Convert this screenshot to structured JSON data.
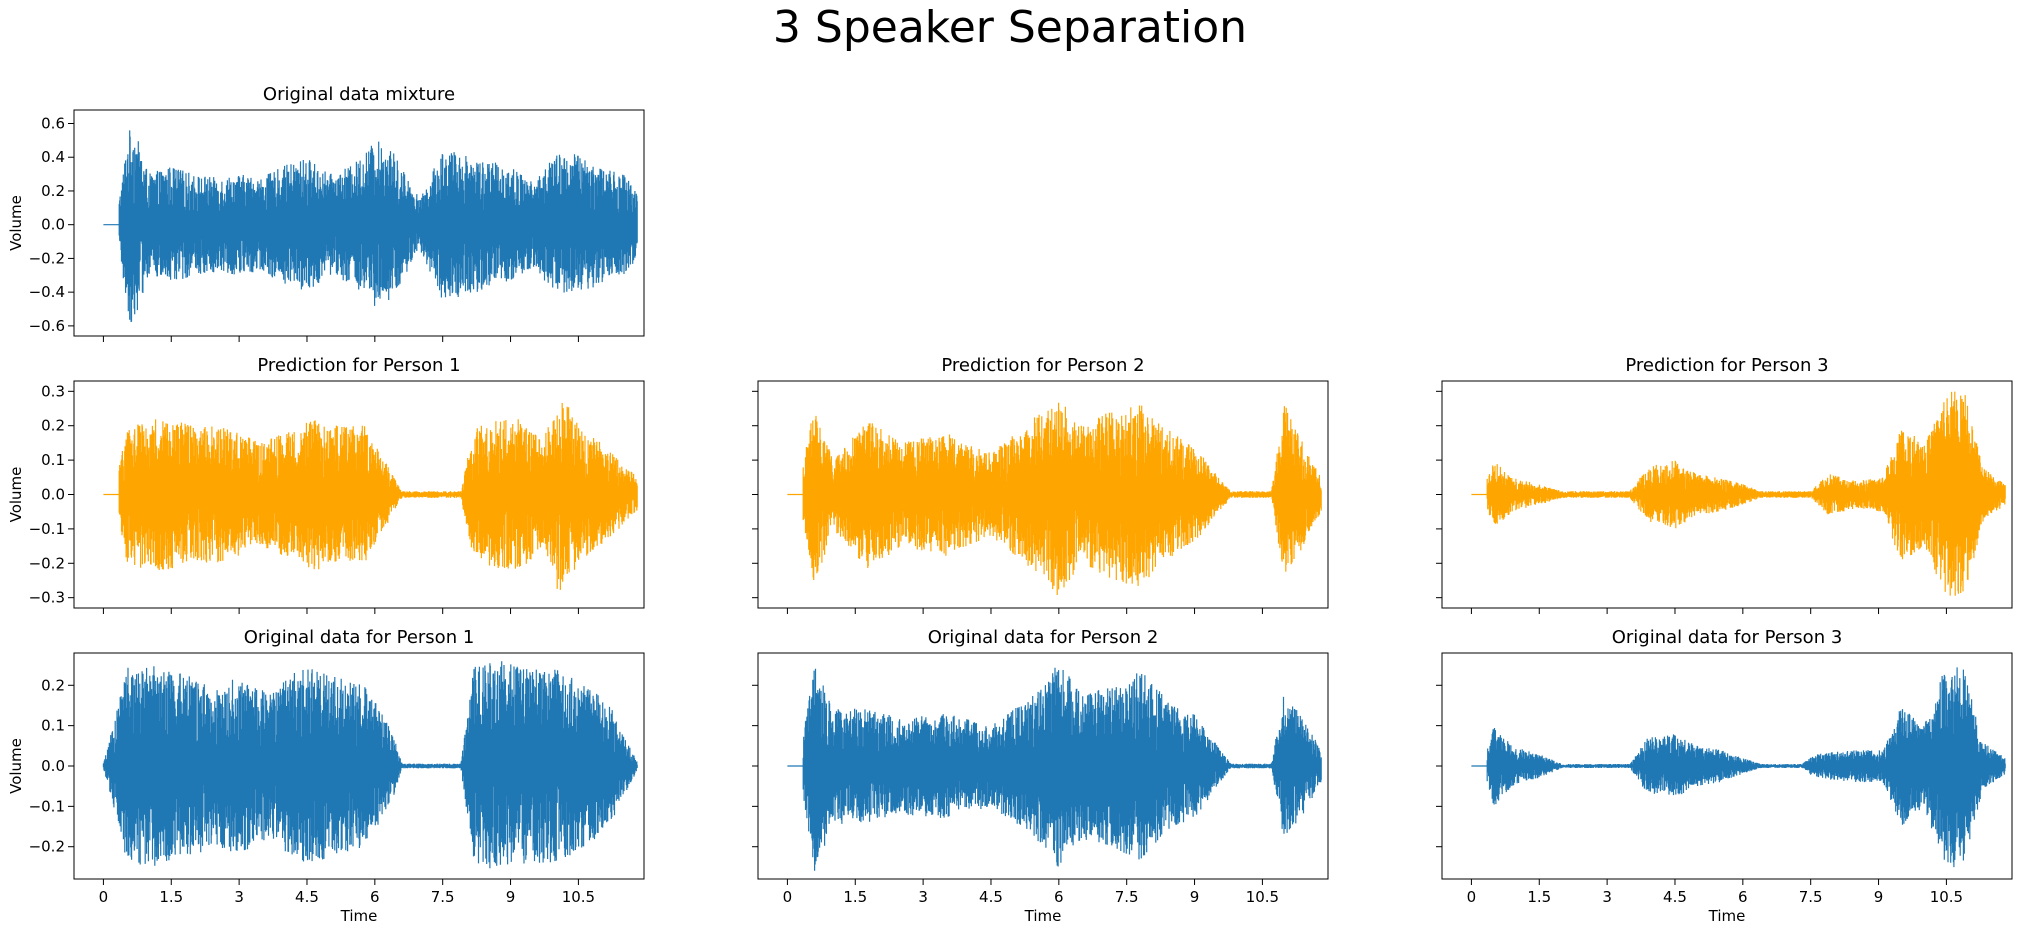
{
  "figure": {
    "suptitle": "3 Speaker Separation"
  },
  "colors": {
    "blue": "#1f77b4",
    "orange": "#ffa500"
  },
  "chart_data": [
    {
      "id": "mix",
      "type": "line",
      "title": "Original data mixture",
      "xlabel": "",
      "ylabel": "Volume",
      "color": "#1f77b4",
      "xlim": [
        -0.65,
        11.95
      ],
      "ylim": [
        -0.66,
        0.68
      ],
      "yticks": [
        -0.6,
        -0.4,
        -0.2,
        0.0,
        0.2,
        0.4,
        0.6
      ],
      "yticklabels": [
        "−0.6",
        "−0.4",
        "−0.2",
        "0.0",
        "0.2",
        "0.4",
        "0.6"
      ],
      "xticks": [
        0,
        1.5,
        3,
        4.5,
        6,
        7.5,
        9,
        10.5
      ],
      "xticklabels": [],
      "duration": 11.8,
      "silence_start": 0.35,
      "envelope": [
        [
          0.3,
          0.05
        ],
        [
          0.55,
          0.55
        ],
        [
          0.65,
          0.6
        ],
        [
          1.0,
          0.3
        ],
        [
          1.5,
          0.35
        ],
        [
          2.0,
          0.3
        ],
        [
          2.5,
          0.28
        ],
        [
          3.0,
          0.3
        ],
        [
          3.5,
          0.28
        ],
        [
          4.0,
          0.35
        ],
        [
          4.5,
          0.4
        ],
        [
          5.0,
          0.3
        ],
        [
          5.5,
          0.35
        ],
        [
          6.0,
          0.5
        ],
        [
          6.3,
          0.48
        ],
        [
          6.8,
          0.25
        ],
        [
          7.0,
          0.15
        ],
        [
          7.5,
          0.45
        ],
        [
          8.0,
          0.42
        ],
        [
          8.5,
          0.38
        ],
        [
          9.0,
          0.35
        ],
        [
          9.5,
          0.25
        ],
        [
          10.0,
          0.42
        ],
        [
          10.5,
          0.42
        ],
        [
          11.0,
          0.35
        ],
        [
          11.5,
          0.3
        ],
        [
          11.8,
          0.2
        ]
      ]
    },
    {
      "id": "pred1",
      "type": "line",
      "title": "Prediction for Person 1",
      "xlabel": "",
      "ylabel": "Volume",
      "color": "#ffa500",
      "xlim": [
        -0.65,
        11.95
      ],
      "ylim": [
        -0.33,
        0.33
      ],
      "yticks": [
        -0.3,
        -0.2,
        -0.1,
        0.0,
        0.1,
        0.2,
        0.3
      ],
      "yticklabels": [
        "−0.3",
        "−0.2",
        "−0.1",
        "0.0",
        "0.1",
        "0.2",
        "0.3"
      ],
      "xticks": [
        0,
        1.5,
        3,
        4.5,
        6,
        7.5,
        9,
        10.5
      ],
      "xticklabels": [],
      "duration": 11.8,
      "silence_start": 0.35,
      "envelope": [
        [
          0.3,
          0.04
        ],
        [
          0.5,
          0.2
        ],
        [
          1.0,
          0.22
        ],
        [
          1.5,
          0.22
        ],
        [
          2.0,
          0.2
        ],
        [
          2.5,
          0.2
        ],
        [
          3.0,
          0.18
        ],
        [
          3.5,
          0.15
        ],
        [
          4.3,
          0.2
        ],
        [
          4.7,
          0.22
        ],
        [
          5.2,
          0.2
        ],
        [
          5.8,
          0.2
        ],
        [
          6.3,
          0.08
        ],
        [
          6.6,
          0.01
        ],
        [
          7.9,
          0.01
        ],
        [
          8.2,
          0.2
        ],
        [
          8.8,
          0.22
        ],
        [
          9.3,
          0.22
        ],
        [
          9.7,
          0.15
        ],
        [
          10.1,
          0.3
        ],
        [
          10.5,
          0.2
        ],
        [
          11.0,
          0.15
        ],
        [
          11.8,
          0.05
        ]
      ]
    },
    {
      "id": "pred2",
      "type": "line",
      "title": "Prediction for Person 2",
      "xlabel": "",
      "ylabel": "",
      "color": "#ffa500",
      "xlim": [
        -0.65,
        11.95
      ],
      "ylim": [
        -0.33,
        0.33
      ],
      "yticks": [
        -0.3,
        -0.2,
        -0.1,
        0.0,
        0.1,
        0.2,
        0.3
      ],
      "yticklabels": [],
      "xticks": [
        0,
        1.5,
        3,
        4.5,
        6,
        7.5,
        9,
        10.5
      ],
      "xticklabels": [],
      "duration": 11.8,
      "silence_start": 0.35,
      "envelope": [
        [
          0.3,
          0.05
        ],
        [
          0.6,
          0.27
        ],
        [
          1.0,
          0.1
        ],
        [
          1.8,
          0.22
        ],
        [
          2.5,
          0.15
        ],
        [
          3.5,
          0.18
        ],
        [
          4.5,
          0.12
        ],
        [
          5.5,
          0.23
        ],
        [
          6.0,
          0.3
        ],
        [
          6.5,
          0.2
        ],
        [
          7.2,
          0.25
        ],
        [
          7.8,
          0.27
        ],
        [
          8.5,
          0.18
        ],
        [
          9.0,
          0.14
        ],
        [
          9.8,
          0.01
        ],
        [
          10.7,
          0.01
        ],
        [
          11.0,
          0.27
        ],
        [
          11.5,
          0.12
        ],
        [
          11.8,
          0.05
        ]
      ]
    },
    {
      "id": "pred3",
      "type": "line",
      "title": "Prediction for Person 3",
      "xlabel": "",
      "ylabel": "",
      "color": "#ffa500",
      "xlim": [
        -0.65,
        11.95
      ],
      "ylim": [
        -0.33,
        0.33
      ],
      "yticks": [
        -0.3,
        -0.2,
        -0.1,
        0.0,
        0.1,
        0.2,
        0.3
      ],
      "yticklabels": [],
      "xticks": [
        0,
        1.5,
        3,
        4.5,
        6,
        7.5,
        9,
        10.5
      ],
      "xticklabels": [],
      "duration": 11.8,
      "silence_start": 0.35,
      "envelope": [
        [
          0.3,
          0.03
        ],
        [
          0.5,
          0.1
        ],
        [
          0.9,
          0.05
        ],
        [
          1.5,
          0.03
        ],
        [
          2.0,
          0.01
        ],
        [
          3.5,
          0.01
        ],
        [
          3.9,
          0.08
        ],
        [
          4.5,
          0.1
        ],
        [
          5.0,
          0.06
        ],
        [
          5.5,
          0.05
        ],
        [
          6.0,
          0.03
        ],
        [
          6.4,
          0.01
        ],
        [
          7.5,
          0.01
        ],
        [
          7.9,
          0.06
        ],
        [
          8.5,
          0.04
        ],
        [
          9.1,
          0.05
        ],
        [
          9.5,
          0.2
        ],
        [
          10.0,
          0.15
        ],
        [
          10.5,
          0.3
        ],
        [
          10.9,
          0.3
        ],
        [
          11.3,
          0.08
        ],
        [
          11.8,
          0.03
        ]
      ]
    },
    {
      "id": "orig1",
      "type": "line",
      "title": "Original data for Person 1",
      "xlabel": "Time",
      "ylabel": "Volume",
      "color": "#1f77b4",
      "xlim": [
        -0.65,
        11.95
      ],
      "ylim": [
        -0.28,
        0.28
      ],
      "yticks": [
        -0.2,
        -0.1,
        0.0,
        0.1,
        0.2
      ],
      "yticklabels": [
        "−0.2",
        "−0.1",
        "0.0",
        "0.1",
        "0.2"
      ],
      "xticks": [
        0,
        1.5,
        3,
        4.5,
        6,
        7.5,
        9,
        10.5
      ],
      "xticklabels": [
        "0",
        "1.5",
        "3",
        "4.5",
        "6",
        "7.5",
        "9",
        "10.5"
      ],
      "duration": 11.8,
      "silence_start": 0.0,
      "envelope": [
        [
          0.0,
          0.006
        ],
        [
          0.55,
          0.25
        ],
        [
          1.0,
          0.25
        ],
        [
          1.5,
          0.24
        ],
        [
          2.0,
          0.22
        ],
        [
          2.5,
          0.2
        ],
        [
          3.0,
          0.22
        ],
        [
          3.7,
          0.18
        ],
        [
          4.3,
          0.24
        ],
        [
          4.7,
          0.24
        ],
        [
          5.2,
          0.22
        ],
        [
          5.8,
          0.2
        ],
        [
          6.4,
          0.08
        ],
        [
          6.6,
          0.006
        ],
        [
          7.9,
          0.006
        ],
        [
          8.2,
          0.25
        ],
        [
          8.8,
          0.26
        ],
        [
          9.4,
          0.24
        ],
        [
          10.0,
          0.24
        ],
        [
          10.7,
          0.2
        ],
        [
          11.2,
          0.15
        ],
        [
          11.8,
          0.01
        ]
      ]
    },
    {
      "id": "orig2",
      "type": "line",
      "title": "Original data for Person 2",
      "xlabel": "Time",
      "ylabel": "",
      "color": "#1f77b4",
      "xlim": [
        -0.65,
        11.95
      ],
      "ylim": [
        -0.28,
        0.28
      ],
      "yticks": [
        -0.2,
        -0.1,
        0.0,
        0.1,
        0.2
      ],
      "yticklabels": [],
      "xticks": [
        0,
        1.5,
        3,
        4.5,
        6,
        7.5,
        9,
        10.5
      ],
      "xticklabels": [
        "0",
        "1.5",
        "3",
        "4.5",
        "6",
        "7.5",
        "9",
        "10.5"
      ],
      "duration": 11.8,
      "silence_start": 0.35,
      "envelope": [
        [
          0.3,
          0.04
        ],
        [
          0.6,
          0.26
        ],
        [
          1.0,
          0.15
        ],
        [
          1.8,
          0.14
        ],
        [
          2.5,
          0.12
        ],
        [
          3.5,
          0.13
        ],
        [
          4.5,
          0.1
        ],
        [
          5.5,
          0.18
        ],
        [
          6.0,
          0.26
        ],
        [
          6.5,
          0.18
        ],
        [
          7.2,
          0.2
        ],
        [
          7.8,
          0.24
        ],
        [
          8.5,
          0.15
        ],
        [
          9.0,
          0.13
        ],
        [
          9.8,
          0.006
        ],
        [
          10.7,
          0.006
        ],
        [
          11.0,
          0.2
        ],
        [
          11.5,
          0.1
        ],
        [
          11.8,
          0.04
        ]
      ]
    },
    {
      "id": "orig3",
      "type": "line",
      "title": "Original data for Person 3",
      "xlabel": "Time",
      "ylabel": "",
      "color": "#1f77b4",
      "xlim": [
        -0.65,
        11.95
      ],
      "ylim": [
        -0.28,
        0.28
      ],
      "yticks": [
        -0.2,
        -0.1,
        0.0,
        0.1,
        0.2
      ],
      "yticklabels": [],
      "xticks": [
        0,
        1.5,
        3,
        4.5,
        6,
        7.5,
        9,
        10.5
      ],
      "xticklabels": [
        "0",
        "1.5",
        "3",
        "4.5",
        "6",
        "7.5",
        "9",
        "10.5"
      ],
      "duration": 11.8,
      "silence_start": 0.35,
      "envelope": [
        [
          0.3,
          0.02
        ],
        [
          0.5,
          0.1
        ],
        [
          0.9,
          0.05
        ],
        [
          1.5,
          0.03
        ],
        [
          2.0,
          0.005
        ],
        [
          3.5,
          0.005
        ],
        [
          3.9,
          0.07
        ],
        [
          4.5,
          0.08
        ],
        [
          5.0,
          0.05
        ],
        [
          5.5,
          0.04
        ],
        [
          6.0,
          0.02
        ],
        [
          6.4,
          0.005
        ],
        [
          7.3,
          0.005
        ],
        [
          7.6,
          0.03
        ],
        [
          8.5,
          0.04
        ],
        [
          9.1,
          0.04
        ],
        [
          9.5,
          0.15
        ],
        [
          10.0,
          0.1
        ],
        [
          10.5,
          0.26
        ],
        [
          10.9,
          0.24
        ],
        [
          11.3,
          0.06
        ],
        [
          11.8,
          0.02
        ]
      ]
    }
  ]
}
